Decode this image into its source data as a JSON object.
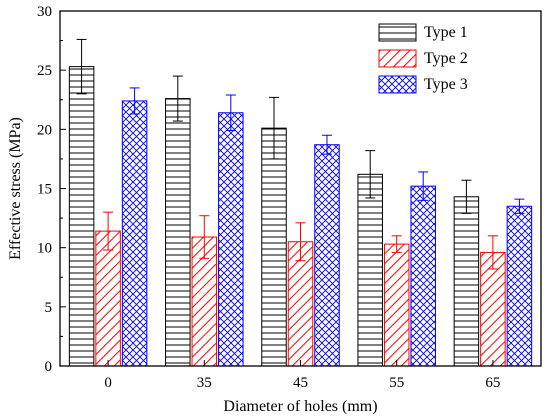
{
  "chart_data": {
    "type": "bar",
    "categories": [
      "0",
      "35",
      "45",
      "55",
      "65"
    ],
    "series": [
      {
        "name": "Type 1",
        "values": [
          25.3,
          22.6,
          20.1,
          16.2,
          14.3
        ],
        "errors": [
          2.3,
          1.9,
          2.6,
          2.0,
          1.4
        ],
        "color": "#000000",
        "pattern": "horizontal-lines"
      },
      {
        "name": "Type 2",
        "values": [
          11.4,
          10.9,
          10.5,
          10.3,
          9.6
        ],
        "errors": [
          1.6,
          1.8,
          1.6,
          0.7,
          1.4
        ],
        "color": "#ff0000",
        "pattern": "diagonal-lines"
      },
      {
        "name": "Type 3",
        "values": [
          22.4,
          21.4,
          18.7,
          15.2,
          13.5
        ],
        "errors": [
          1.1,
          1.5,
          0.8,
          1.2,
          0.6
        ],
        "color": "#0000ff",
        "pattern": "crosshatch"
      }
    ],
    "xlabel": "Diameter of holes (mm)",
    "ylabel": "Effective stress (MPa)",
    "ylim": [
      0,
      30
    ],
    "yticks": [
      "0",
      "5",
      "10",
      "15",
      "20",
      "25",
      "30"
    ],
    "grid": false,
    "legend": "top-right"
  }
}
